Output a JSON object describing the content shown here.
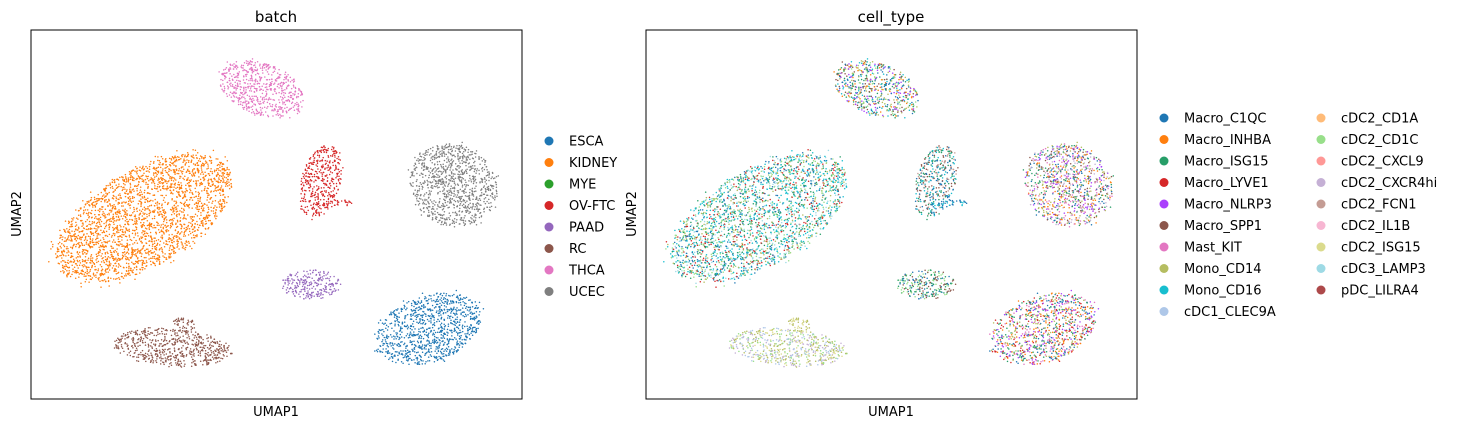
{
  "chart_data": [
    {
      "type": "scatter",
      "title": "batch",
      "xlabel": "UMAP1",
      "ylabel": "UMAP2",
      "xlim": [
        0,
        100
      ],
      "ylim": [
        0,
        100
      ],
      "grid": false,
      "legend_position": "right",
      "legend": [
        {
          "label": "ESCA",
          "color": "#1f77b4"
        },
        {
          "label": "KIDNEY",
          "color": "#ff7f0e"
        },
        {
          "label": "MYE",
          "color": "#2ca02c"
        },
        {
          "label": "OV-FTC",
          "color": "#d62728"
        },
        {
          "label": "PAAD",
          "color": "#9467bd"
        },
        {
          "label": "RC",
          "color": "#8c564b"
        },
        {
          "label": "THCA",
          "color": "#e377c2"
        },
        {
          "label": "UCEC",
          "color": "#7f7f7f"
        }
      ],
      "clusters": [
        {
          "name": "THCA",
          "cx": 47,
          "cy": 84,
          "rx": 9,
          "ry": 7,
          "angle": -20,
          "colors": [
            "#e377c2"
          ]
        },
        {
          "name": "KIDNEY",
          "cx": 23,
          "cy": 49,
          "rx": 20,
          "ry": 13,
          "angle": 30,
          "colors": [
            "#ff7f0e"
          ]
        },
        {
          "name": "OV-FTC",
          "cx": 59,
          "cy": 59,
          "rx": 4,
          "ry": 10,
          "angle": -15,
          "colors": [
            "#d62728"
          ]
        },
        {
          "name": "OV-FTC tail",
          "cx": 62,
          "cy": 53,
          "rx": 4.5,
          "ry": 1,
          "angle": 5,
          "colors": [
            "#d62728"
          ]
        },
        {
          "name": "UCEC",
          "cx": 86,
          "cy": 58,
          "rx": 9,
          "ry": 11,
          "angle": -30,
          "colors": [
            "#7f7f7f"
          ]
        },
        {
          "name": "PAAD",
          "cx": 57,
          "cy": 31,
          "rx": 6,
          "ry": 4,
          "angle": 0,
          "colors": [
            "#9467bd"
          ]
        },
        {
          "name": "RC",
          "cx": 29,
          "cy": 14,
          "rx": 12,
          "ry": 5,
          "angle": -5,
          "colors": [
            "#8c564b"
          ]
        },
        {
          "name": "RC top",
          "cx": 31,
          "cy": 20,
          "rx": 2.5,
          "ry": 2,
          "angle": 0,
          "colors": [
            "#8c564b"
          ]
        },
        {
          "name": "ESCA",
          "cx": 81,
          "cy": 19,
          "rx": 11,
          "ry": 9,
          "angle": 20,
          "colors": [
            "#1f77b4"
          ]
        }
      ]
    },
    {
      "type": "scatter",
      "title": "cell_type",
      "xlabel": "UMAP1",
      "ylabel": "UMAP2",
      "xlim": [
        0,
        100
      ],
      "ylim": [
        0,
        100
      ],
      "grid": false,
      "legend_position": "right",
      "legend": [
        {
          "label": "Macro_C1QC",
          "color": "#1f77b4"
        },
        {
          "label": "Macro_INHBA",
          "color": "#ff7f0e"
        },
        {
          "label": "Macro_ISG15",
          "color": "#279e68"
        },
        {
          "label": "Macro_LYVE1",
          "color": "#d62728"
        },
        {
          "label": "Macro_NLRP3",
          "color": "#aa40fc"
        },
        {
          "label": "Macro_SPP1",
          "color": "#8c564b"
        },
        {
          "label": "Mast_KIT",
          "color": "#e377c2"
        },
        {
          "label": "Mono_CD14",
          "color": "#b5bd61"
        },
        {
          "label": "Mono_CD16",
          "color": "#17becf"
        },
        {
          "label": "cDC1_CLEC9A",
          "color": "#aec7e8"
        },
        {
          "label": "cDC2_CD1A",
          "color": "#ffbb78"
        },
        {
          "label": "cDC2_CD1C",
          "color": "#98df8a"
        },
        {
          "label": "cDC2_CXCL9",
          "color": "#ff9896"
        },
        {
          "label": "cDC2_CXCR4hi",
          "color": "#c5b0d5"
        },
        {
          "label": "cDC2_FCN1",
          "color": "#c49c94"
        },
        {
          "label": "cDC2_IL1B",
          "color": "#f7b6d2"
        },
        {
          "label": "cDC2_ISG15",
          "color": "#dbdb8d"
        },
        {
          "label": "cDC3_LAMP3",
          "color": "#9edae5"
        },
        {
          "label": "pDC_LILRA4",
          "color": "#ad494a"
        }
      ],
      "clusters": [
        {
          "name": "top",
          "cx": 47,
          "cy": 84,
          "rx": 9,
          "ry": 7,
          "angle": -20,
          "colors": [
            "#ff7f0e",
            "#aa40fc",
            "#1f77b4",
            "#279e68",
            "#b5bd61",
            "#98df8a",
            "#8c564b",
            "#17becf"
          ]
        },
        {
          "name": "large",
          "cx": 23,
          "cy": 49,
          "rx": 20,
          "ry": 13,
          "angle": 30,
          "colors": [
            "#17becf",
            "#17becf",
            "#98df8a",
            "#279e68",
            "#b5bd61",
            "#9edae5",
            "#1f77b4",
            "#d62728"
          ]
        },
        {
          "name": "mid-spike",
          "cx": 59,
          "cy": 59,
          "rx": 4,
          "ry": 10,
          "angle": -15,
          "colors": [
            "#1f77b4",
            "#8c564b",
            "#279e68",
            "#17becf",
            "#c49c94"
          ]
        },
        {
          "name": "mid-tail",
          "cx": 62,
          "cy": 53,
          "rx": 4.5,
          "ry": 1,
          "angle": 5,
          "colors": [
            "#1f77b4",
            "#17becf"
          ]
        },
        {
          "name": "right",
          "cx": 86,
          "cy": 58,
          "rx": 9,
          "ry": 11,
          "angle": -30,
          "colors": [
            "#8c564b",
            "#279e68",
            "#aa40fc",
            "#ff7f0e",
            "#b5bd61",
            "#1f77b4",
            "#e377c2",
            "#c5b0d5"
          ]
        },
        {
          "name": "small",
          "cx": 57,
          "cy": 31,
          "rx": 6,
          "ry": 4,
          "angle": 0,
          "colors": [
            "#1f77b4",
            "#279e68",
            "#8c564b",
            "#98df8a"
          ]
        },
        {
          "name": "bottom-left",
          "cx": 29,
          "cy": 14,
          "rx": 12,
          "ry": 5,
          "angle": -5,
          "colors": [
            "#c5b0d5",
            "#b5bd61",
            "#98df8a",
            "#dbdb8d",
            "#aec7e8"
          ]
        },
        {
          "name": "bottom-left-top",
          "cx": 31,
          "cy": 20,
          "rx": 2.5,
          "ry": 2,
          "angle": 0,
          "colors": [
            "#dbdb8d",
            "#b5bd61"
          ]
        },
        {
          "name": "bottom-right",
          "cx": 81,
          "cy": 19,
          "rx": 11,
          "ry": 9,
          "angle": 20,
          "colors": [
            "#aa40fc",
            "#d62728",
            "#ff7f0e",
            "#1f77b4",
            "#b5bd61",
            "#279e68",
            "#e377c2"
          ]
        }
      ]
    }
  ]
}
